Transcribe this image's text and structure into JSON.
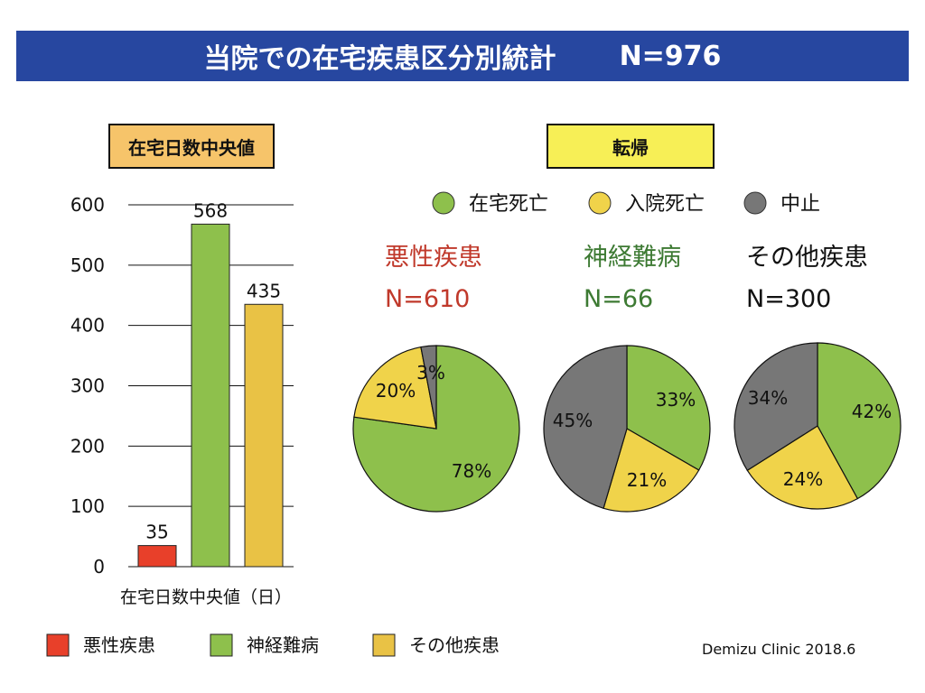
{
  "header": {
    "title": "当院での在宅疾患区分別統計",
    "n_total": "N=976"
  },
  "bar_panel": {
    "label": "在宅日数中央値"
  },
  "pie_panel": {
    "label": "転帰"
  },
  "legend_outcome": [
    {
      "label": "在宅死亡",
      "color": "#8ec04c"
    },
    {
      "label": "入院死亡",
      "color": "#f0d34a"
    },
    {
      "label": "中止",
      "color": "#777777"
    }
  ],
  "legend_disease": [
    {
      "label": "悪性疾患",
      "color": "#e8402a"
    },
    {
      "label": "神経難病",
      "color": "#8ec04c"
    },
    {
      "label": "その他疾患",
      "color": "#e9c245"
    }
  ],
  "footer": {
    "credit": "Demizu Clinic 2018.6"
  },
  "chart_data": [
    {
      "type": "bar",
      "title": "在宅日数中央値",
      "xlabel": "在宅日数中央値（日）",
      "ylabel": "",
      "categories": [
        "悪性疾患",
        "神経難病",
        "その他疾患"
      ],
      "values": [
        35,
        568,
        435
      ],
      "colors": [
        "#e8402a",
        "#8ec04c",
        "#e9c245"
      ],
      "ylim": [
        0,
        600
      ],
      "yticks": [
        0,
        100,
        200,
        300,
        400,
        500,
        600
      ],
      "grid": true
    },
    {
      "type": "pie",
      "title": "悪性疾患",
      "subtitle": "N=610",
      "title_color": "#c0392b",
      "labels": [
        "在宅死亡",
        "入院死亡",
        "中止"
      ],
      "values": [
        78,
        20,
        3
      ],
      "value_labels": [
        "78%",
        "20%",
        "3%"
      ]
    },
    {
      "type": "pie",
      "title": "神経難病",
      "subtitle": "N=66",
      "title_color": "#3d7a33",
      "labels": [
        "在宅死亡",
        "入院死亡",
        "中止"
      ],
      "values": [
        33,
        21,
        45
      ],
      "value_labels": [
        "33%",
        "21%",
        "45%"
      ]
    },
    {
      "type": "pie",
      "title": "その他疾患",
      "subtitle": "N=300",
      "title_color": "#111111",
      "labels": [
        "在宅死亡",
        "入院死亡",
        "中止"
      ],
      "values": [
        42,
        24,
        34
      ],
      "value_labels": [
        "42%",
        "24%",
        "34%"
      ]
    }
  ]
}
